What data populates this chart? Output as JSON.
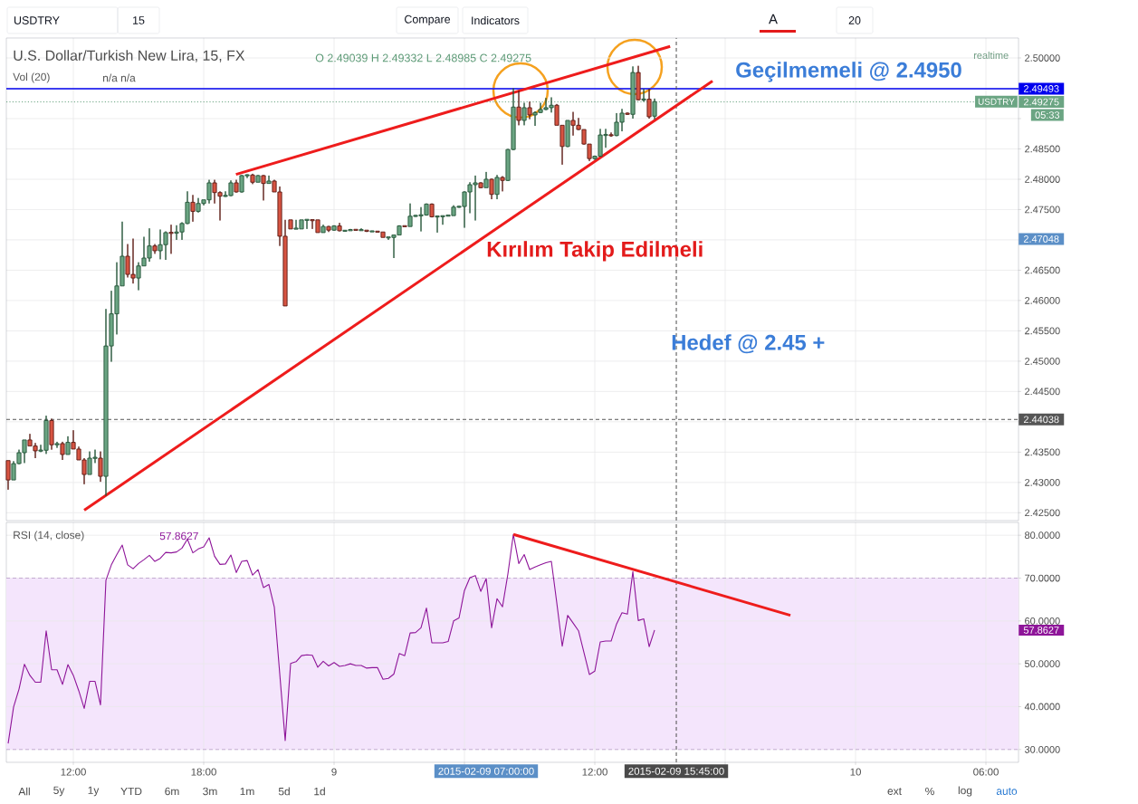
{
  "chart_data": [
    {
      "type": "candlestick",
      "title": "U.S. Dollar/Turkish New Lira, 15, FX",
      "subtitle": "O 2.49039 H 2.49332 L 2.48985 C 2.49275",
      "x": [
        "2015-02-08T09:00",
        "2015-02-08T09:15",
        "2015-02-08T09:30",
        "2015-02-08T09:45",
        "2015-02-08T10:00",
        "2015-02-08T10:15",
        "2015-02-08T10:30",
        "2015-02-08T10:45",
        "2015-02-08T11:00",
        "2015-02-08T11:15",
        "2015-02-08T11:30",
        "2015-02-08T11:45",
        "2015-02-08T12:00",
        "2015-02-08T12:15",
        "2015-02-08T12:30",
        "2015-02-08T12:45",
        "2015-02-08T13:00",
        "2015-02-08T13:15",
        "2015-02-08T13:30",
        "2015-02-08T13:45",
        "2015-02-08T14:00",
        "2015-02-08T14:15",
        "2015-02-08T14:30",
        "2015-02-08T14:45",
        "2015-02-08T15:00",
        "2015-02-08T15:15",
        "2015-02-08T15:30",
        "2015-02-08T15:45",
        "2015-02-08T16:00",
        "2015-02-08T16:15",
        "2015-02-08T16:30",
        "2015-02-08T16:45",
        "2015-02-08T17:00",
        "2015-02-08T17:15",
        "2015-02-08T17:30",
        "2015-02-08T17:45",
        "2015-02-08T18:00",
        "2015-02-08T18:15",
        "2015-02-08T18:30",
        "2015-02-08T18:45",
        "2015-02-08T19:00",
        "2015-02-08T19:15",
        "2015-02-08T19:30",
        "2015-02-08T19:45",
        "2015-02-08T20:00",
        "2015-02-08T20:15",
        "2015-02-08T20:30",
        "2015-02-08T20:45",
        "2015-02-08T21:00",
        "2015-02-08T21:15",
        "2015-02-08T21:30",
        "2015-02-08T21:45",
        "2015-02-08T22:00",
        "2015-02-08T22:15",
        "2015-02-08T22:30",
        "2015-02-08T22:45",
        "2015-02-08T23:00",
        "2015-02-08T23:15",
        "2015-02-08T23:30",
        "2015-02-08T23:45",
        "2015-02-09T00:00",
        "2015-02-09T00:15",
        "2015-02-09T00:30",
        "2015-02-09T00:45",
        "2015-02-09T01:00",
        "2015-02-09T01:15",
        "2015-02-09T01:30",
        "2015-02-09T01:45",
        "2015-02-09T02:00",
        "2015-02-09T02:15",
        "2015-02-09T02:30",
        "2015-02-09T02:45",
        "2015-02-09T03:00",
        "2015-02-09T03:15",
        "2015-02-09T03:30",
        "2015-02-09T03:45",
        "2015-02-09T04:00",
        "2015-02-09T04:15",
        "2015-02-09T04:30",
        "2015-02-09T04:45",
        "2015-02-09T05:00",
        "2015-02-09T05:15",
        "2015-02-09T05:30",
        "2015-02-09T05:45",
        "2015-02-09T06:00",
        "2015-02-09T06:15",
        "2015-02-09T06:30",
        "2015-02-09T06:45",
        "2015-02-09T07:00",
        "2015-02-09T07:15",
        "2015-02-09T07:30",
        "2015-02-09T07:45",
        "2015-02-09T08:00",
        "2015-02-09T08:15",
        "2015-02-09T08:30",
        "2015-02-09T08:45",
        "2015-02-09T09:00",
        "2015-02-09T09:15",
        "2015-02-09T09:30",
        "2015-02-09T09:45",
        "2015-02-09T10:00",
        "2015-02-09T10:15",
        "2015-02-09T10:30",
        "2015-02-09T10:45",
        "2015-02-09T11:00",
        "2015-02-09T11:15",
        "2015-02-09T11:30",
        "2015-02-09T11:45",
        "2015-02-09T12:00",
        "2015-02-09T12:15",
        "2015-02-09T12:30",
        "2015-02-09T12:45",
        "2015-02-09T13:00",
        "2015-02-09T13:15",
        "2015-02-09T13:30",
        "2015-02-09T13:45",
        "2015-02-09T14:00",
        "2015-02-09T14:15",
        "2015-02-09T14:30",
        "2015-02-09T14:45"
      ],
      "ohlc": [
        [
          2.4336,
          2.4336,
          2.4288,
          2.4304
        ],
        [
          2.4304,
          2.4335,
          2.4304,
          2.4331
        ],
        [
          2.4331,
          2.4354,
          2.433,
          2.4349
        ],
        [
          2.4349,
          2.437,
          2.4332,
          2.437
        ],
        [
          2.437,
          2.438,
          2.436,
          2.436
        ],
        [
          2.436,
          2.4365,
          2.434,
          2.4352
        ],
        [
          2.4352,
          2.4362,
          2.435,
          2.4353
        ],
        [
          2.4353,
          2.441,
          2.4347,
          2.4402
        ],
        [
          2.4402,
          2.4405,
          2.4354,
          2.4362
        ],
        [
          2.4362,
          2.4367,
          2.4357,
          2.4364
        ],
        [
          2.4364,
          2.4367,
          2.4337,
          2.4346
        ],
        [
          2.4346,
          2.4376,
          2.4346,
          2.4366
        ],
        [
          2.4366,
          2.4386,
          2.4355,
          2.4355
        ],
        [
          2.4355,
          2.4359,
          2.4337,
          2.4337
        ],
        [
          2.4337,
          2.434,
          2.4297,
          2.4313
        ],
        [
          2.4313,
          2.4351,
          2.4313,
          2.434
        ],
        [
          2.434,
          2.4354,
          2.4332,
          2.4341
        ],
        [
          2.434,
          2.4351,
          2.4301,
          2.431
        ],
        [
          2.431,
          2.4586,
          2.4278,
          2.4525
        ],
        [
          2.4525,
          2.4616,
          2.4499,
          2.4578
        ],
        [
          2.4578,
          2.4663,
          2.4544,
          2.4624
        ],
        [
          2.4624,
          2.473,
          2.4624,
          2.4673
        ],
        [
          2.4673,
          2.4693,
          2.4638,
          2.4643
        ],
        [
          2.4643,
          2.4702,
          2.4628,
          2.4637
        ],
        [
          2.4637,
          2.4663,
          2.4617,
          2.4657
        ],
        [
          2.4657,
          2.4705,
          2.4657,
          2.467
        ],
        [
          2.467,
          2.4719,
          2.4664,
          2.469
        ],
        [
          2.469,
          2.4693,
          2.4677,
          2.4682
        ],
        [
          2.4682,
          2.4717,
          2.4668,
          2.4692
        ],
        [
          2.4692,
          2.4714,
          2.4667,
          2.4712
        ],
        [
          2.4712,
          2.4725,
          2.4677,
          2.4711
        ],
        [
          2.4711,
          2.4724,
          2.47,
          2.4713
        ],
        [
          2.4713,
          2.4729,
          2.47,
          2.4727
        ],
        [
          2.4727,
          2.478,
          2.4726,
          2.4762
        ],
        [
          2.4762,
          2.4774,
          2.473,
          2.4747
        ],
        [
          2.4747,
          2.4769,
          2.4745,
          2.476
        ],
        [
          2.476,
          2.4766,
          2.4757,
          2.4766
        ],
        [
          2.4766,
          2.4799,
          2.476,
          2.4794
        ],
        [
          2.4794,
          2.4799,
          2.476,
          2.4778
        ],
        [
          2.4778,
          2.478,
          2.4732,
          2.4772
        ],
        [
          2.4772,
          2.478,
          2.4771,
          2.4773
        ],
        [
          2.4773,
          2.4798,
          2.4772,
          2.4794
        ],
        [
          2.4794,
          2.4799,
          2.4778,
          2.4779
        ],
        [
          2.4779,
          2.4807,
          2.4778,
          2.4806
        ],
        [
          2.4806,
          2.4808,
          2.4802,
          2.4807
        ],
        [
          2.4807,
          2.4809,
          2.4792,
          2.4795
        ],
        [
          2.4795,
          2.4807,
          2.4795,
          2.4806
        ],
        [
          2.4806,
          2.4807,
          2.4765,
          2.4793
        ],
        [
          2.4793,
          2.4806,
          2.4793,
          2.4797
        ],
        [
          2.4797,
          2.4799,
          2.4779,
          2.4779
        ],
        [
          2.4779,
          2.4788,
          2.469,
          2.4706
        ],
        [
          2.4706,
          2.4733,
          2.4591,
          2.4591
        ],
        [
          2.4733,
          2.4733,
          2.4718,
          2.4718
        ],
        [
          2.4718,
          2.4733,
          2.4718,
          2.4719
        ],
        [
          2.4718,
          2.4733,
          2.4718,
          2.4733
        ],
        [
          2.4733,
          2.4733,
          2.4718,
          2.4733
        ],
        [
          2.4733,
          2.4733,
          2.4718,
          2.4732
        ],
        [
          2.4733,
          2.4733,
          2.4712,
          2.4712
        ],
        [
          2.4712,
          2.4725,
          2.4712,
          2.4722
        ],
        [
          2.4722,
          2.4723,
          2.4713,
          2.4716
        ],
        [
          2.4716,
          2.4724,
          2.4715,
          2.4723
        ],
        [
          2.4723,
          2.4728,
          2.4714,
          2.4715
        ],
        [
          2.4715,
          2.4716,
          2.4714,
          2.4715
        ],
        [
          2.4715,
          2.4718,
          2.4715,
          2.4717
        ],
        [
          2.4717,
          2.4717,
          2.4716,
          2.4716
        ],
        [
          2.4716,
          2.4719,
          2.4715,
          2.4716
        ],
        [
          2.4716,
          2.4716,
          2.4713,
          2.4714
        ],
        [
          2.4714,
          2.4715,
          2.4714,
          2.4714
        ],
        [
          2.4714,
          2.4714,
          2.4713,
          2.4713
        ],
        [
          2.4713,
          2.4713,
          2.4704,
          2.4704
        ],
        [
          2.4704,
          2.4704,
          2.47,
          2.4704
        ],
        [
          2.4704,
          2.4708,
          2.467,
          2.4708
        ],
        [
          2.4708,
          2.4724,
          2.4708,
          2.4723
        ],
        [
          2.4723,
          2.4723,
          2.4722,
          2.4722
        ],
        [
          2.4722,
          2.476,
          2.4722,
          2.4739
        ],
        [
          2.4739,
          2.4741,
          2.4738,
          2.474
        ],
        [
          2.474,
          2.4754,
          2.4714,
          2.4741
        ],
        [
          2.4741,
          2.476,
          2.474,
          2.4759
        ],
        [
          2.4759,
          2.476,
          2.4737,
          2.4738
        ],
        [
          2.4738,
          2.474,
          2.4712,
          2.4739
        ],
        [
          2.4739,
          2.474,
          2.4725,
          2.4739
        ],
        [
          2.4739,
          2.4741,
          2.4739,
          2.4741
        ],
        [
          2.474,
          2.4757,
          2.474,
          2.4754
        ],
        [
          2.4754,
          2.4756,
          2.4753,
          2.4755
        ],
        [
          2.4755,
          2.478,
          2.472,
          2.4779
        ],
        [
          2.4779,
          2.4795,
          2.4744,
          2.4791
        ],
        [
          2.4791,
          2.4806,
          2.4732,
          2.4794
        ],
        [
          2.4794,
          2.4795,
          2.4785,
          2.4786
        ],
        [
          2.4786,
          2.4812,
          2.4786,
          2.48
        ],
        [
          2.48,
          2.4801,
          2.4767,
          2.4775
        ],
        [
          2.4775,
          2.4807,
          2.4767,
          2.4803
        ],
        [
          2.4803,
          2.4805,
          2.478,
          2.4798
        ],
        [
          2.4798,
          2.485,
          2.4797,
          2.4849
        ],
        [
          2.4849,
          2.495,
          2.4848,
          2.4919
        ],
        [
          2.4919,
          2.4946,
          2.4889,
          2.4897
        ],
        [
          2.4897,
          2.4926,
          2.4889,
          2.4918
        ],
        [
          2.4918,
          2.4928,
          2.4899,
          2.4906
        ],
        [
          2.4906,
          2.4912,
          2.4888,
          2.491
        ],
        [
          2.491,
          2.4926,
          2.4909,
          2.4915
        ],
        [
          2.4915,
          2.4934,
          2.4914,
          2.4918
        ],
        [
          2.4918,
          2.4935,
          2.491,
          2.4922
        ],
        [
          2.4922,
          2.4924,
          2.4889,
          2.4889
        ],
        [
          2.4889,
          2.4889,
          2.4824,
          2.4854
        ],
        [
          2.4854,
          2.4897,
          2.4853,
          2.4897
        ],
        [
          2.4897,
          2.4911,
          2.4872,
          2.4889
        ],
        [
          2.4889,
          2.4901,
          2.4881,
          2.4882
        ],
        [
          2.4882,
          2.4882,
          2.4857,
          2.4858
        ],
        [
          2.4858,
          2.4858,
          2.483,
          2.4834
        ],
        [
          2.4834,
          2.4839,
          2.4832,
          2.4838
        ],
        [
          2.4838,
          2.4883,
          2.4837,
          2.4873
        ],
        [
          2.4873,
          2.4883,
          2.4852,
          2.4873
        ],
        [
          2.4873,
          2.4877,
          2.487,
          2.4872
        ],
        [
          2.4872,
          2.4909,
          2.4871,
          2.4894
        ],
        [
          2.4894,
          2.4916,
          2.4879,
          2.4909
        ],
        [
          2.4909,
          2.491,
          2.4906,
          2.4907
        ],
        [
          2.4907,
          2.4986,
          2.49,
          2.4976
        ],
        [
          2.4976,
          2.4987,
          2.493,
          2.4931
        ],
        [
          2.4931,
          2.4949,
          2.4928,
          2.4932
        ],
        [
          2.4932,
          2.4949,
          2.49,
          2.4903
        ],
        [
          2.4904,
          2.4933,
          2.4899,
          2.4928
        ]
      ],
      "series": [
        {
          "type": "line",
          "x": [
            "2015-02-08T19:29",
            "2015-02-09T15:28"
          ],
          "values": [
            2.4808,
            2.5019
          ],
          "color": "#ee1c1c"
        },
        {
          "type": "line",
          "x": [
            "2015-02-08T12:30",
            "2015-02-09T17:25"
          ],
          "values": [
            2.4254,
            2.4962
          ],
          "color": "#ee1c1c"
        }
      ],
      "xlim": [
        "2015-02-08T08:55",
        "2015-02-10T07:30"
      ],
      "ylim": [
        2.4237,
        2.5033
      ],
      "xticks": [
        {
          "value": "2015-02-08T12:00",
          "label": null
        },
        {
          "value": "2015-02-08T18:00",
          "label": null
        },
        {
          "value": "2015-02-09",
          "label": null
        },
        {
          "value": "2015-02-09T06:00",
          "label": null
        },
        {
          "value": "2015-02-09T12:00",
          "label": null
        },
        {
          "value": "2015-02-09T18:00",
          "label": null
        },
        {
          "value": "2015-02-10",
          "label": null
        },
        {
          "value": "2015-02-10T06:00",
          "label": null
        }
      ],
      "yticks": [
        {
          "value": 2.425,
          "label": "2.42500"
        },
        {
          "value": 2.43,
          "label": "2.43000"
        },
        {
          "value": 2.435,
          "label": "2.43500"
        },
        {
          "value": 2.44,
          "label": null
        },
        {
          "value": 2.445,
          "label": "2.44500"
        },
        {
          "value": 2.45,
          "label": "2.45000"
        },
        {
          "value": 2.455,
          "label": "2.45500"
        },
        {
          "value": 2.46,
          "label": "2.46000"
        },
        {
          "value": 2.465,
          "label": "2.46500"
        },
        {
          "value": 2.47,
          "label": null
        },
        {
          "value": 2.475,
          "label": "2.47500"
        },
        {
          "value": 2.48,
          "label": "2.48000"
        },
        {
          "value": 2.485,
          "label": "2.48500"
        },
        {
          "value": 2.49,
          "label": null
        },
        {
          "value": 2.495,
          "label": null
        },
        {
          "value": 2.5,
          "label": "2.50000"
        }
      ],
      "grid": true,
      "tick_labels": "y",
      "ref_lines": [
        {
          "axis": "y",
          "value": 2.49493,
          "label": "2.49493",
          "color": "#0000ee"
        },
        {
          "axis": "y",
          "value": 2.49275,
          "label": "2.49275",
          "color": "#6ba583",
          "line_style": "dotted"
        },
        {
          "axis": "y",
          "value": 2.44038,
          "label": "2.44038",
          "color": "#555555",
          "line_style": "dashed"
        },
        {
          "axis": "x",
          "value": "2015-02-09T15:45",
          "color": "#4a4a4a",
          "line_style": "dashed"
        }
      ],
      "annotations": [
        "USDTRY",
        "15",
        "Compare",
        "Indicators",
        "A",
        "20",
        "Vol (20)",
        "n/a n/a",
        "realtime",
        "USDTRY",
        "05:33",
        "Geçilmemeli @ 2.4950",
        "Kırılım Takip Edilmeli",
        "Hedef @ 2.45 +",
        "2.47048"
      ]
    },
    {
      "type": "line",
      "title": "RSI (14, close)",
      "x": [
        "2015-02-08T09:00",
        "2015-02-08T09:15",
        "2015-02-08T09:30",
        "2015-02-08T09:45",
        "2015-02-08T10:00",
        "2015-02-08T10:15",
        "2015-02-08T10:30",
        "2015-02-08T10:45",
        "2015-02-08T11:00",
        "2015-02-08T11:15",
        "2015-02-08T11:30",
        "2015-02-08T11:45",
        "2015-02-08T12:00",
        "2015-02-08T12:15",
        "2015-02-08T12:30",
        "2015-02-08T12:45",
        "2015-02-08T13:00",
        "2015-02-08T13:15",
        "2015-02-08T13:30",
        "2015-02-08T13:45",
        "2015-02-08T14:00",
        "2015-02-08T14:15",
        "2015-02-08T14:30",
        "2015-02-08T14:45",
        "2015-02-08T15:00",
        "2015-02-08T15:15",
        "2015-02-08T15:30",
        "2015-02-08T15:45",
        "2015-02-08T16:00",
        "2015-02-08T16:15",
        "2015-02-08T16:30",
        "2015-02-08T16:45",
        "2015-02-08T17:00",
        "2015-02-08T17:15",
        "2015-02-08T17:30",
        "2015-02-08T17:45",
        "2015-02-08T18:00",
        "2015-02-08T18:15",
        "2015-02-08T18:30",
        "2015-02-08T18:45",
        "2015-02-08T19:00",
        "2015-02-08T19:15",
        "2015-02-08T19:30",
        "2015-02-08T19:45",
        "2015-02-08T20:00",
        "2015-02-08T20:15",
        "2015-02-08T20:30",
        "2015-02-08T20:45",
        "2015-02-08T21:00",
        "2015-02-08T21:15",
        "2015-02-08T21:30",
        "2015-02-08T21:45",
        "2015-02-08T22:00",
        "2015-02-08T22:15",
        "2015-02-08T22:30",
        "2015-02-08T22:45",
        "2015-02-08T23:00",
        "2015-02-08T23:15",
        "2015-02-08T23:30",
        "2015-02-08T23:45",
        "2015-02-09T00:00",
        "2015-02-09T00:15",
        "2015-02-09T00:30",
        "2015-02-09T00:45",
        "2015-02-09T01:00",
        "2015-02-09T01:15",
        "2015-02-09T01:30",
        "2015-02-09T01:45",
        "2015-02-09T02:00",
        "2015-02-09T02:15",
        "2015-02-09T02:30",
        "2015-02-09T02:45",
        "2015-02-09T03:00",
        "2015-02-09T03:15",
        "2015-02-09T03:30",
        "2015-02-09T03:45",
        "2015-02-09T04:00",
        "2015-02-09T04:15",
        "2015-02-09T04:30",
        "2015-02-09T04:45",
        "2015-02-09T05:00",
        "2015-02-09T05:15",
        "2015-02-09T05:30",
        "2015-02-09T05:45",
        "2015-02-09T06:00",
        "2015-02-09T06:15",
        "2015-02-09T06:30",
        "2015-02-09T06:45",
        "2015-02-09T07:00",
        "2015-02-09T07:15",
        "2015-02-09T07:30",
        "2015-02-09T07:45",
        "2015-02-09T08:00",
        "2015-02-09T08:15",
        "2015-02-09T08:30",
        "2015-02-09T08:45",
        "2015-02-09T09:00",
        "2015-02-09T09:15",
        "2015-02-09T09:30",
        "2015-02-09T09:45",
        "2015-02-09T10:00",
        "2015-02-09T10:15",
        "2015-02-09T10:30",
        "2015-02-09T10:45",
        "2015-02-09T11:00",
        "2015-02-09T11:15",
        "2015-02-09T11:30",
        "2015-02-09T11:45",
        "2015-02-09T12:00",
        "2015-02-09T12:15",
        "2015-02-09T12:30",
        "2015-02-09T12:45",
        "2015-02-09T13:00",
        "2015-02-09T13:15",
        "2015-02-09T13:30",
        "2015-02-09T13:45",
        "2015-02-09T14:00",
        "2015-02-09T14:15",
        "2015-02-09T14:30",
        "2015-02-09T14:45"
      ],
      "series": [
        {
          "color": "#8e1599",
          "values": [
            31.4,
            39.9,
            44.1,
            49.9,
            47.3,
            45.7,
            45.7,
            57.7,
            48.6,
            48.6,
            45.2,
            49.8,
            47.3,
            43.7,
            39.6,
            45.9,
            45.9,
            40.4,
            69.5,
            73.1,
            75.5,
            77.7,
            73.1,
            72.2,
            73.4,
            74.3,
            75.3,
            73.9,
            74.6,
            76.0,
            75.9,
            76.1,
            77.0,
            79.1,
            75.9,
            76.8,
            77.3,
            79.4,
            75.1,
            73.2,
            73.3,
            75.4,
            71.3,
            73.9,
            74.1,
            70.7,
            72.0,
            67.8,
            68.5,
            63.2,
            47.6,
            32.1,
            50.1,
            50.5,
            51.9,
            52.1,
            52.0,
            49.2,
            50.6,
            49.5,
            50.3,
            49.4,
            49.6,
            50.0,
            49.6,
            49.6,
            49.0,
            49.1,
            49.1,
            46.4,
            46.6,
            47.6,
            52.4,
            51.9,
            57.2,
            57.3,
            58.4,
            63.0,
            54.9,
            54.9,
            54.9,
            55.2,
            60.0,
            60.7,
            67.1,
            70.1,
            70.6,
            66.9,
            69.9,
            58.4,
            65.2,
            63.3,
            71.0,
            80.2,
            73.4,
            75.5,
            72.0,
            72.6,
            73.1,
            73.6,
            73.9,
            64.2,
            54.1,
            61.3,
            59.5,
            57.7,
            52.6,
            47.5,
            48.3,
            55.1,
            55.3,
            55.3,
            59.3,
            61.9,
            61.6,
            71.5,
            60.1,
            60.5,
            54.0,
            57.8627
          ]
        },
        {
          "x": [
            "2015-02-09T08:15",
            "2015-02-09T21:00"
          ],
          "values": [
            80.2,
            61.3
          ],
          "color": "#ee1c1c"
        }
      ],
      "xlim": [
        "2015-02-08T08:55",
        "2015-02-10T07:30"
      ],
      "ylim": [
        27,
        83
      ],
      "xticks": [
        {
          "value": "2015-02-08T12:00",
          "label": "12:00"
        },
        {
          "value": "2015-02-08T18:00",
          "label": "18:00"
        },
        {
          "value": "2015-02-09",
          "label": "9"
        },
        {
          "value": "2015-02-09T06:00",
          "label": null
        },
        {
          "value": "2015-02-09T12:00",
          "label": "12:00"
        },
        {
          "value": "2015-02-09T18:00",
          "label": null
        },
        {
          "value": "2015-02-10",
          "label": "10"
        },
        {
          "value": "2015-02-10T06:00",
          "label": "06:00"
        }
      ],
      "yticks": [
        {
          "value": 30,
          "label": "30.0000"
        },
        {
          "value": 40,
          "label": "40.0000"
        },
        {
          "value": 50,
          "label": "50.0000"
        },
        {
          "value": 60,
          "label": "60.0000"
        },
        {
          "value": 70,
          "label": "70.0000"
        },
        {
          "value": 80,
          "label": "80.0000"
        }
      ],
      "grid": true,
      "bands": [
        {
          "axis": "y",
          "from": 30,
          "to": 70,
          "color": "#f4e5fc"
        }
      ],
      "ref_lines": [
        {
          "axis": "x",
          "value": "2015-02-09T15:45",
          "label": "2015-02-09 15:45:00",
          "color": "#4a4a4a",
          "line_style": "dashed"
        }
      ],
      "annotations": [
        "57.8627",
        "57.8627",
        "2015-02-09 07:00:00",
        "All",
        "5y",
        "1y",
        "YTD",
        "6m",
        "3m",
        "1m",
        "5d",
        "1d",
        "ext",
        "%",
        "log",
        "auto"
      ]
    }
  ]
}
